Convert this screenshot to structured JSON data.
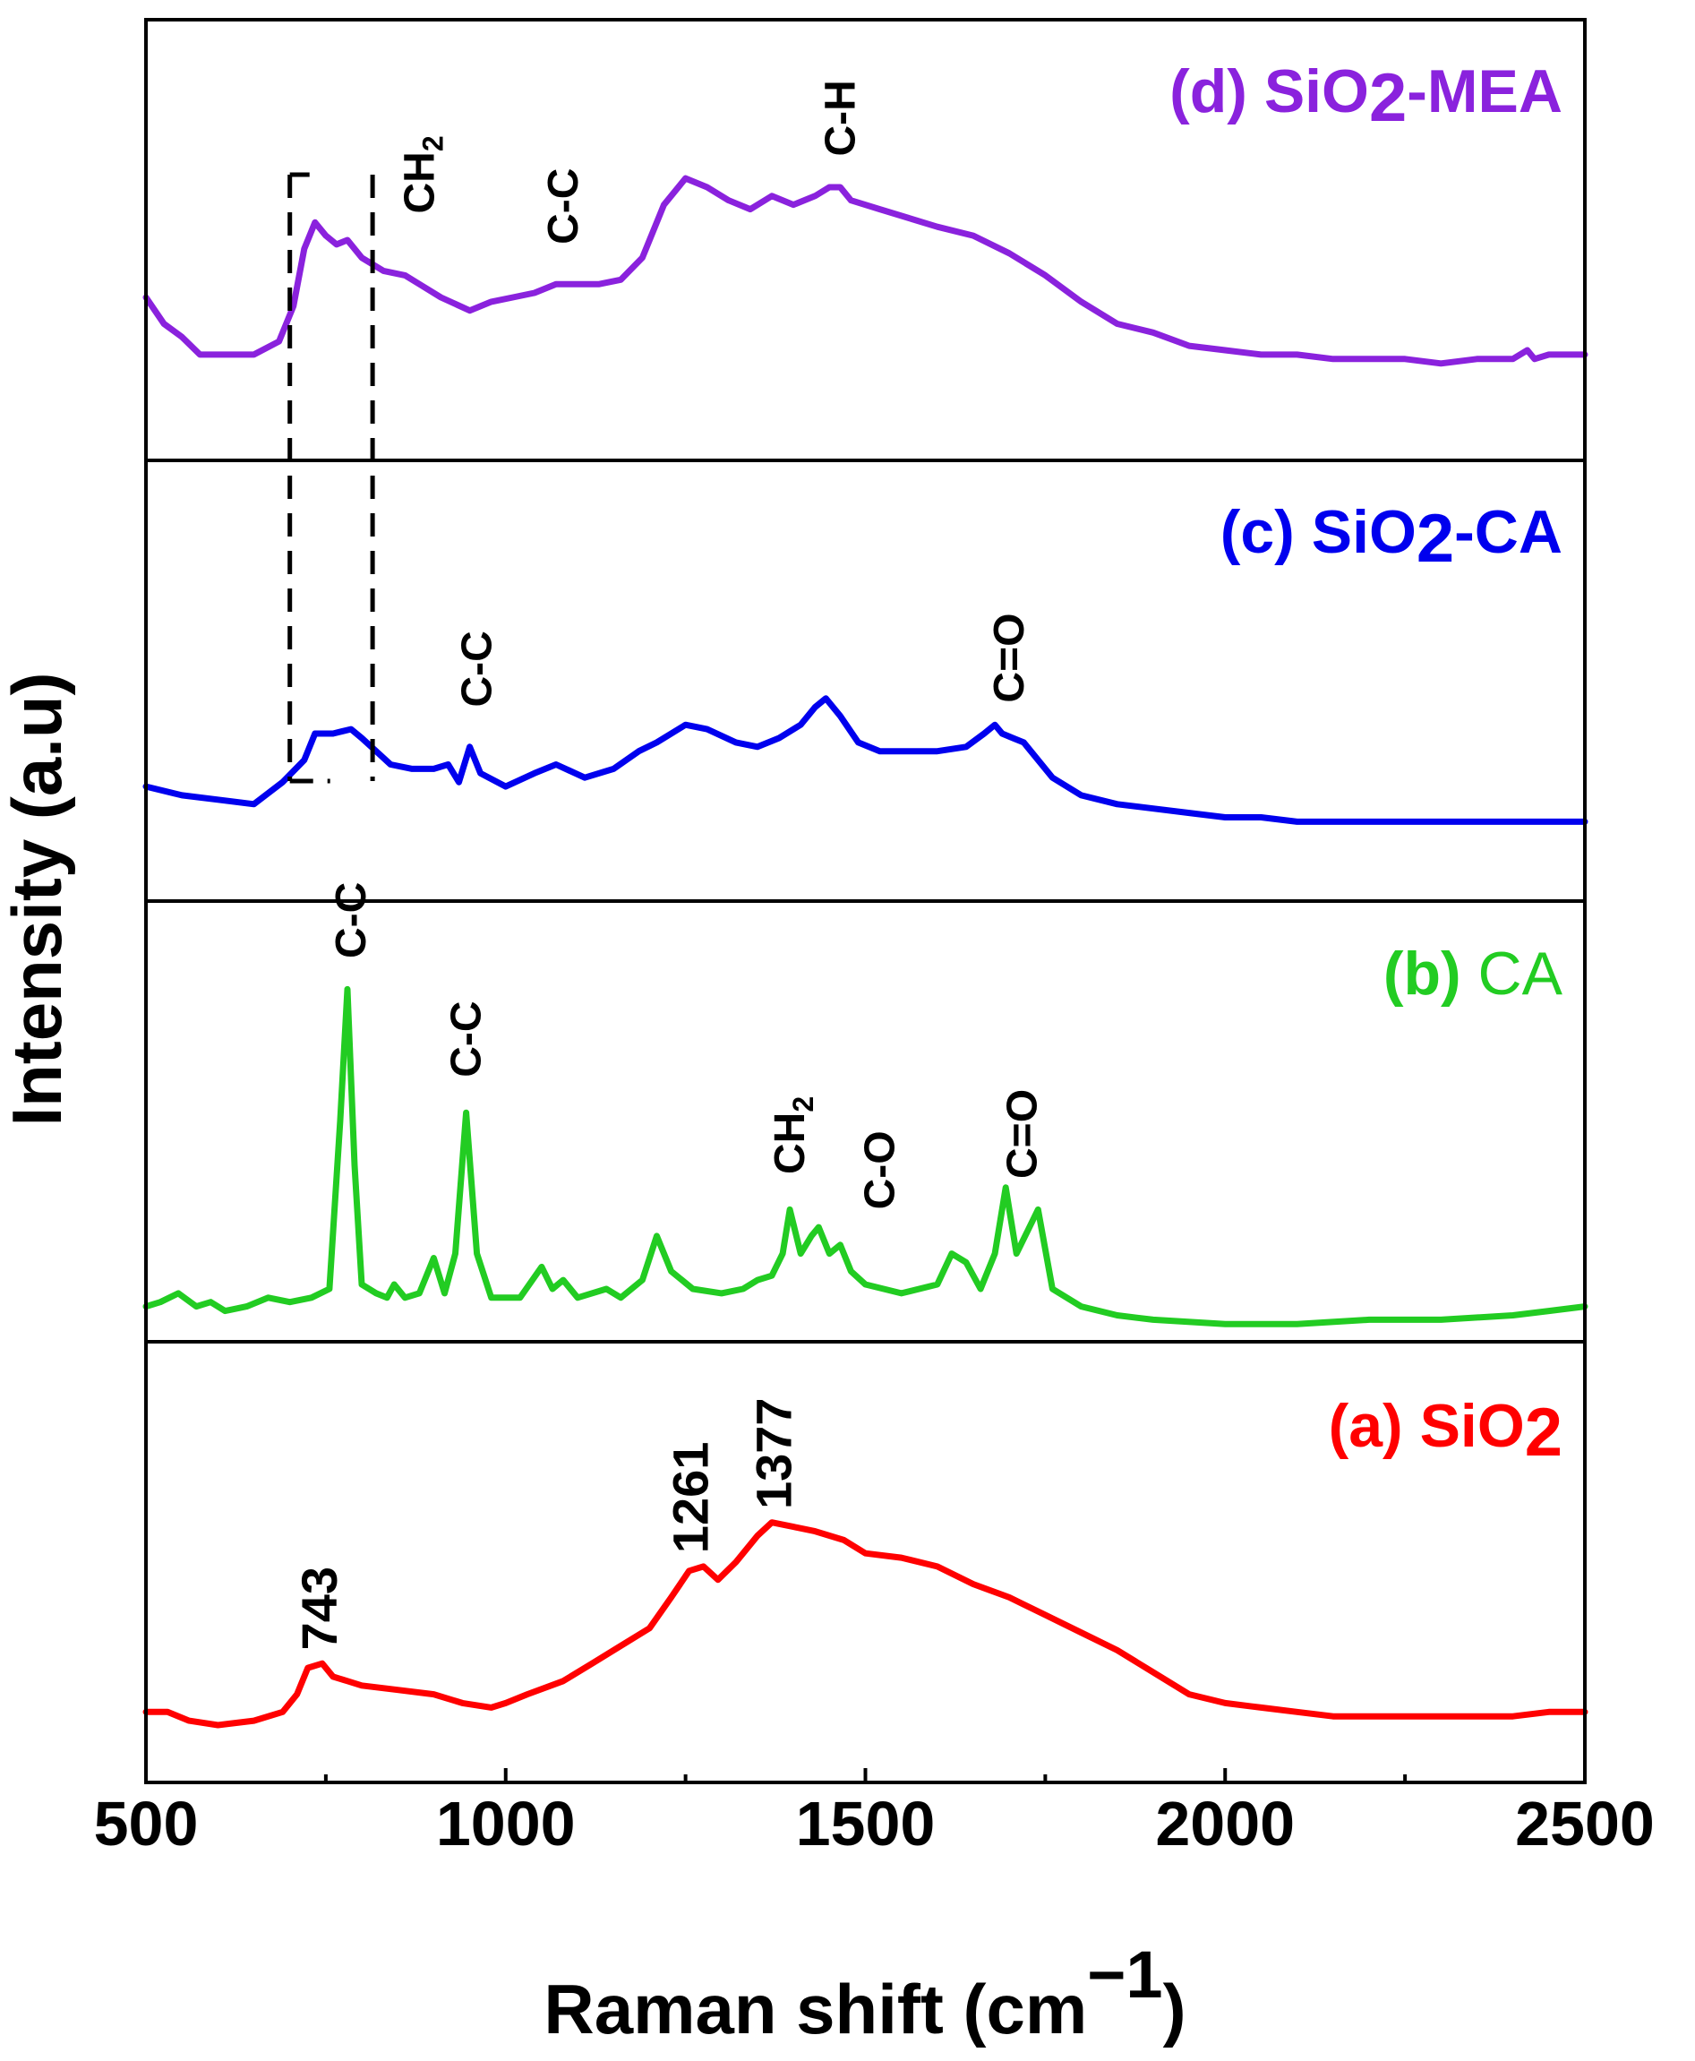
{
  "chart_data": {
    "type": "line",
    "title": "",
    "xlabel": "Raman shift (cm",
    "xlabel_sup": "−1",
    "xlabel_close": ")",
    "ylabel": "Intensity (a.u)",
    "xlim": [
      500,
      2500
    ],
    "x_ticks": [
      "500",
      "1000",
      "1500",
      "2000",
      "2500"
    ],
    "colors": {
      "a": "#ff0000",
      "b": "#22cc22",
      "c": "#0000ee",
      "d": "#8a22dd"
    },
    "panels": [
      {
        "id": "d",
        "label_prefix": "(d) SiO",
        "label_sub": "2",
        "label_suffix": "-MEA",
        "color_key": "d",
        "ylim": [
          0,
          1
        ],
        "points": [
          [
            500,
            0.37
          ],
          [
            525,
            0.31
          ],
          [
            550,
            0.28
          ],
          [
            575,
            0.24
          ],
          [
            650,
            0.24
          ],
          [
            685,
            0.27
          ],
          [
            705,
            0.35
          ],
          [
            720,
            0.48
          ],
          [
            735,
            0.54
          ],
          [
            750,
            0.51
          ],
          [
            765,
            0.49
          ],
          [
            780,
            0.5
          ],
          [
            800,
            0.46
          ],
          [
            830,
            0.43
          ],
          [
            860,
            0.42
          ],
          [
            880,
            0.4
          ],
          [
            910,
            0.37
          ],
          [
            950,
            0.34
          ],
          [
            980,
            0.36
          ],
          [
            1010,
            0.37
          ],
          [
            1040,
            0.38
          ],
          [
            1070,
            0.4
          ],
          [
            1100,
            0.4
          ],
          [
            1130,
            0.4
          ],
          [
            1160,
            0.41
          ],
          [
            1190,
            0.46
          ],
          [
            1220,
            0.58
          ],
          [
            1250,
            0.64
          ],
          [
            1280,
            0.62
          ],
          [
            1310,
            0.59
          ],
          [
            1340,
            0.57
          ],
          [
            1370,
            0.6
          ],
          [
            1400,
            0.58
          ],
          [
            1430,
            0.6
          ],
          [
            1450,
            0.62
          ],
          [
            1465,
            0.62
          ],
          [
            1480,
            0.59
          ],
          [
            1520,
            0.57
          ],
          [
            1560,
            0.55
          ],
          [
            1600,
            0.53
          ],
          [
            1650,
            0.51
          ],
          [
            1700,
            0.47
          ],
          [
            1750,
            0.42
          ],
          [
            1800,
            0.36
          ],
          [
            1850,
            0.31
          ],
          [
            1900,
            0.29
          ],
          [
            1950,
            0.26
          ],
          [
            2000,
            0.25
          ],
          [
            2050,
            0.24
          ],
          [
            2100,
            0.24
          ],
          [
            2150,
            0.23
          ],
          [
            2200,
            0.23
          ],
          [
            2250,
            0.23
          ],
          [
            2300,
            0.22
          ],
          [
            2350,
            0.23
          ],
          [
            2400,
            0.23
          ],
          [
            2420,
            0.25
          ],
          [
            2430,
            0.23
          ],
          [
            2450,
            0.24
          ],
          [
            2500,
            0.24
          ]
        ],
        "annotations": [
          {
            "text": "CH",
            "sub": "2",
            "x": 880,
            "y": 0.56
          },
          {
            "text": "C-C",
            "x": 1080,
            "y": 0.49
          },
          {
            "text": "C-H",
            "x": 1465,
            "y": 0.69
          }
        ]
      },
      {
        "id": "c",
        "label_prefix": "(c) SiO",
        "label_sub": "2",
        "label_suffix": "-CA",
        "color_key": "c",
        "ylim": [
          0,
          1
        ],
        "points": [
          [
            500,
            0.26
          ],
          [
            550,
            0.24
          ],
          [
            600,
            0.23
          ],
          [
            650,
            0.22
          ],
          [
            690,
            0.27
          ],
          [
            720,
            0.32
          ],
          [
            735,
            0.38
          ],
          [
            760,
            0.38
          ],
          [
            785,
            0.39
          ],
          [
            800,
            0.37
          ],
          [
            820,
            0.34
          ],
          [
            840,
            0.31
          ],
          [
            870,
            0.3
          ],
          [
            900,
            0.3
          ],
          [
            920,
            0.31
          ],
          [
            935,
            0.27
          ],
          [
            950,
            0.35
          ],
          [
            965,
            0.29
          ],
          [
            1000,
            0.26
          ],
          [
            1040,
            0.29
          ],
          [
            1070,
            0.31
          ],
          [
            1110,
            0.28
          ],
          [
            1150,
            0.3
          ],
          [
            1185,
            0.34
          ],
          [
            1210,
            0.36
          ],
          [
            1250,
            0.4
          ],
          [
            1280,
            0.39
          ],
          [
            1320,
            0.36
          ],
          [
            1350,
            0.35
          ],
          [
            1380,
            0.37
          ],
          [
            1410,
            0.4
          ],
          [
            1430,
            0.44
          ],
          [
            1445,
            0.46
          ],
          [
            1465,
            0.42
          ],
          [
            1490,
            0.36
          ],
          [
            1520,
            0.34
          ],
          [
            1560,
            0.34
          ],
          [
            1600,
            0.34
          ],
          [
            1640,
            0.35
          ],
          [
            1665,
            0.38
          ],
          [
            1680,
            0.4
          ],
          [
            1690,
            0.38
          ],
          [
            1705,
            0.37
          ],
          [
            1720,
            0.36
          ],
          [
            1760,
            0.28
          ],
          [
            1800,
            0.24
          ],
          [
            1850,
            0.22
          ],
          [
            1900,
            0.21
          ],
          [
            1950,
            0.2
          ],
          [
            2000,
            0.19
          ],
          [
            2050,
            0.19
          ],
          [
            2100,
            0.18
          ],
          [
            2200,
            0.18
          ],
          [
            2300,
            0.18
          ],
          [
            2400,
            0.18
          ],
          [
            2500,
            0.18
          ]
        ],
        "annotations": [
          {
            "text": "C-C",
            "x": 960,
            "y": 0.44
          },
          {
            "text": "C=O",
            "x": 1700,
            "y": 0.45
          }
        ]
      },
      {
        "id": "b",
        "label_prefix": "(b) ",
        "label_suffix": "CA",
        "color_key": "b",
        "ylim": [
          0,
          1
        ],
        "points": [
          [
            500,
            0.08
          ],
          [
            520,
            0.09
          ],
          [
            545,
            0.11
          ],
          [
            570,
            0.08
          ],
          [
            590,
            0.09
          ],
          [
            610,
            0.07
          ],
          [
            640,
            0.08
          ],
          [
            670,
            0.1
          ],
          [
            700,
            0.09
          ],
          [
            730,
            0.1
          ],
          [
            755,
            0.12
          ],
          [
            770,
            0.5
          ],
          [
            780,
            0.8
          ],
          [
            790,
            0.4
          ],
          [
            800,
            0.13
          ],
          [
            820,
            0.11
          ],
          [
            835,
            0.1
          ],
          [
            845,
            0.13
          ],
          [
            860,
            0.1
          ],
          [
            880,
            0.11
          ],
          [
            900,
            0.19
          ],
          [
            915,
            0.11
          ],
          [
            930,
            0.2
          ],
          [
            945,
            0.52
          ],
          [
            960,
            0.2
          ],
          [
            980,
            0.1
          ],
          [
            1020,
            0.1
          ],
          [
            1050,
            0.17
          ],
          [
            1065,
            0.12
          ],
          [
            1080,
            0.14
          ],
          [
            1100,
            0.1
          ],
          [
            1140,
            0.12
          ],
          [
            1160,
            0.1
          ],
          [
            1190,
            0.14
          ],
          [
            1210,
            0.24
          ],
          [
            1230,
            0.16
          ],
          [
            1260,
            0.12
          ],
          [
            1300,
            0.11
          ],
          [
            1330,
            0.12
          ],
          [
            1350,
            0.14
          ],
          [
            1370,
            0.15
          ],
          [
            1385,
            0.2
          ],
          [
            1395,
            0.3
          ],
          [
            1410,
            0.2
          ],
          [
            1425,
            0.24
          ],
          [
            1435,
            0.26
          ],
          [
            1450,
            0.2
          ],
          [
            1465,
            0.22
          ],
          [
            1480,
            0.16
          ],
          [
            1500,
            0.13
          ],
          [
            1550,
            0.11
          ],
          [
            1600,
            0.13
          ],
          [
            1620,
            0.2
          ],
          [
            1640,
            0.18
          ],
          [
            1660,
            0.12
          ],
          [
            1680,
            0.2
          ],
          [
            1695,
            0.35
          ],
          [
            1710,
            0.2
          ],
          [
            1725,
            0.25
          ],
          [
            1740,
            0.3
          ],
          [
            1760,
            0.12
          ],
          [
            1800,
            0.08
          ],
          [
            1850,
            0.06
          ],
          [
            1900,
            0.05
          ],
          [
            2000,
            0.04
          ],
          [
            2100,
            0.04
          ],
          [
            2200,
            0.05
          ],
          [
            2300,
            0.05
          ],
          [
            2400,
            0.06
          ],
          [
            2450,
            0.07
          ],
          [
            2500,
            0.08
          ]
        ],
        "annotations": [
          {
            "text": "C-C",
            "x": 785,
            "y": 0.87
          },
          {
            "text": "C-C",
            "x": 945,
            "y": 0.6
          },
          {
            "text": "CH",
            "sub": "2",
            "x": 1395,
            "y": 0.38
          },
          {
            "text": "C-O",
            "x": 1520,
            "y": 0.3
          },
          {
            "text": "C=O",
            "x": 1718,
            "y": 0.37
          }
        ]
      },
      {
        "id": "a",
        "label_prefix": "(a) SiO",
        "label_sub": "2",
        "label_suffix": "",
        "color_key": "a",
        "ylim": [
          0,
          1
        ],
        "points": [
          [
            500,
            0.16
          ],
          [
            530,
            0.16
          ],
          [
            560,
            0.14
          ],
          [
            600,
            0.13
          ],
          [
            650,
            0.14
          ],
          [
            690,
            0.16
          ],
          [
            710,
            0.2
          ],
          [
            725,
            0.26
          ],
          [
            745,
            0.27
          ],
          [
            760,
            0.24
          ],
          [
            780,
            0.23
          ],
          [
            800,
            0.22
          ],
          [
            850,
            0.21
          ],
          [
            900,
            0.2
          ],
          [
            940,
            0.18
          ],
          [
            980,
            0.17
          ],
          [
            1000,
            0.18
          ],
          [
            1030,
            0.2
          ],
          [
            1080,
            0.23
          ],
          [
            1120,
            0.27
          ],
          [
            1160,
            0.31
          ],
          [
            1200,
            0.35
          ],
          [
            1230,
            0.42
          ],
          [
            1255,
            0.48
          ],
          [
            1275,
            0.49
          ],
          [
            1295,
            0.46
          ],
          [
            1320,
            0.5
          ],
          [
            1350,
            0.56
          ],
          [
            1370,
            0.59
          ],
          [
            1400,
            0.58
          ],
          [
            1430,
            0.57
          ],
          [
            1470,
            0.55
          ],
          [
            1500,
            0.52
          ],
          [
            1550,
            0.51
          ],
          [
            1600,
            0.49
          ],
          [
            1650,
            0.45
          ],
          [
            1700,
            0.42
          ],
          [
            1750,
            0.38
          ],
          [
            1800,
            0.34
          ],
          [
            1850,
            0.3
          ],
          [
            1900,
            0.25
          ],
          [
            1950,
            0.2
          ],
          [
            2000,
            0.18
          ],
          [
            2050,
            0.17
          ],
          [
            2100,
            0.16
          ],
          [
            2150,
            0.15
          ],
          [
            2200,
            0.15
          ],
          [
            2250,
            0.15
          ],
          [
            2300,
            0.15
          ],
          [
            2350,
            0.15
          ],
          [
            2400,
            0.15
          ],
          [
            2450,
            0.16
          ],
          [
            2500,
            0.16
          ]
        ],
        "annotations": [
          {
            "text": "743",
            "x": 745,
            "y": 0.3
          },
          {
            "text": "1261",
            "x": 1261,
            "y": 0.52
          },
          {
            "text": "1377",
            "x": 1377,
            "y": 0.62
          }
        ]
      }
    ],
    "highlight_region": {
      "x_range": [
        700,
        815
      ],
      "description": "dashed box spanning panels d and c"
    }
  }
}
